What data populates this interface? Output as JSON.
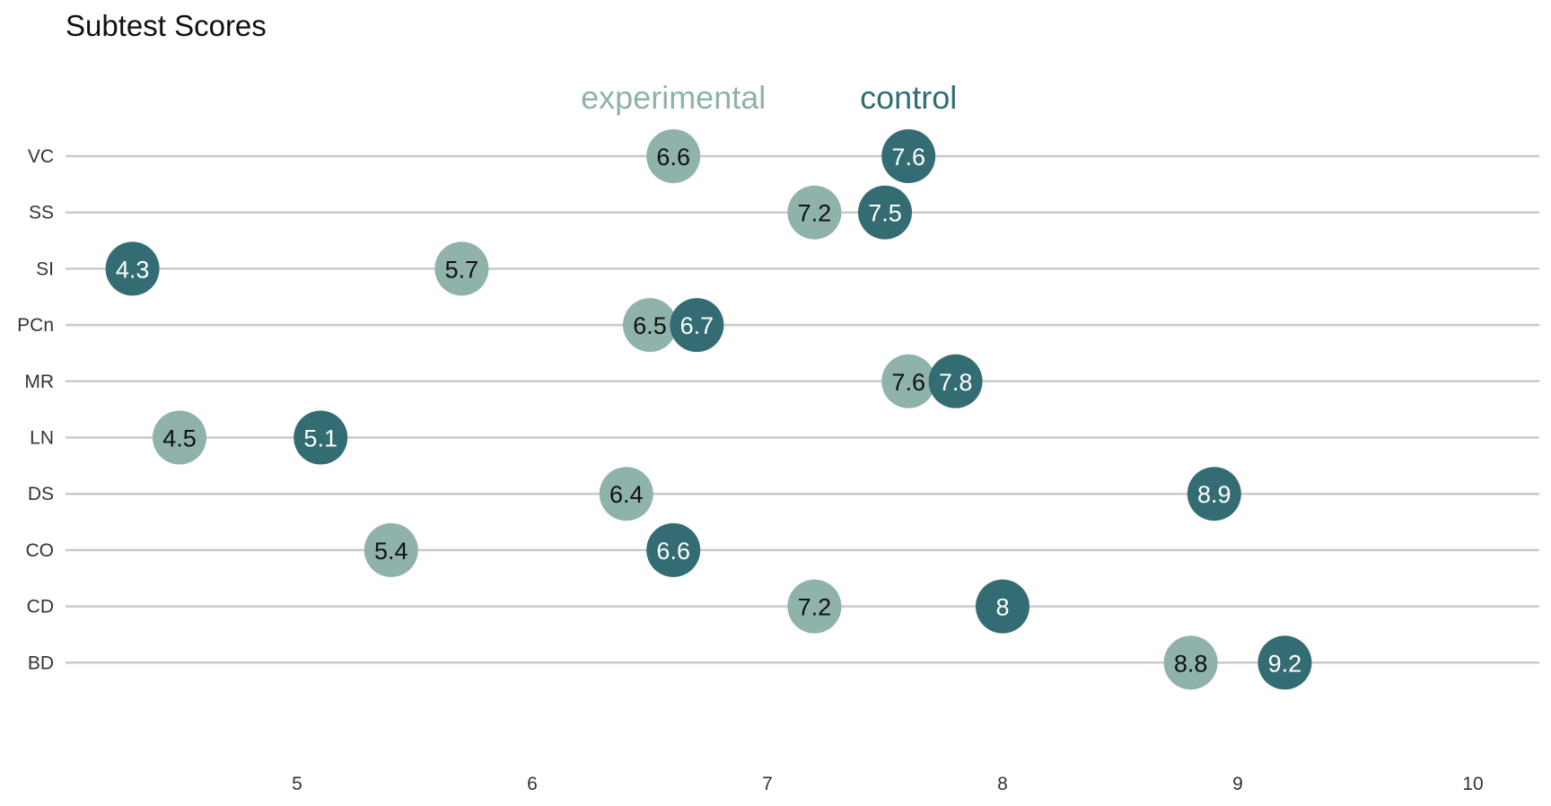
{
  "chart_data": {
    "type": "scatter",
    "title": "Subtest Scores",
    "xlabel": "",
    "ylabel": "",
    "xlim": [
      4.0,
      10.3
    ],
    "x_ticks": [
      "5",
      "6",
      "7",
      "8",
      "9",
      "10"
    ],
    "x_tick_values": [
      5,
      6,
      7,
      8,
      9,
      10
    ],
    "categories": [
      "VC",
      "SS",
      "SI",
      "PCn",
      "MR",
      "LN",
      "DS",
      "CO",
      "CD",
      "BD"
    ],
    "grid": "horizontal",
    "legend_position": "top-center, inline labels",
    "series": [
      {
        "name": "experimental",
        "color": "#8fb2ab",
        "label_color": "#111111",
        "values": [
          6.6,
          7.2,
          5.7,
          6.5,
          7.6,
          4.5,
          6.4,
          5.4,
          7.2,
          8.8
        ],
        "labels": [
          "6.6",
          "7.2",
          "5.7",
          "6.5",
          "7.6",
          "4.5",
          "6.4",
          "5.4",
          "7.2",
          "8.8"
        ]
      },
      {
        "name": "control",
        "color": "#336d73",
        "label_color": "#ffffff",
        "values": [
          7.6,
          7.5,
          4.3,
          6.7,
          7.8,
          5.1,
          8.9,
          6.6,
          8.0,
          9.2
        ],
        "labels": [
          "7.6",
          "7.5",
          "4.3",
          "6.7",
          "7.8",
          "5.1",
          "8.9",
          "6.6",
          "8",
          "9.2"
        ]
      }
    ],
    "annotations": [
      {
        "text": "experimental",
        "series": "experimental",
        "x": 6.6
      },
      {
        "text": "control",
        "series": "control",
        "x": 7.6
      }
    ]
  }
}
